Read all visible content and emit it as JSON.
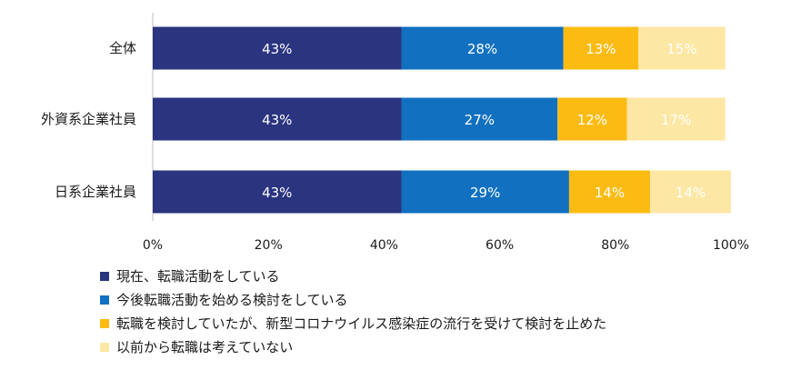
{
  "chart_data": {
    "type": "bar",
    "orientation": "horizontal",
    "stacked": true,
    "categories": [
      "全体",
      "外資系企業社員",
      "日系企業社員"
    ],
    "series": [
      {
        "name": "現在、転職活動をしている",
        "values": [
          43,
          43,
          43
        ],
        "labels": [
          "43%",
          "43%",
          "43%"
        ],
        "color": "#2a347f",
        "label_color": "#ffffff"
      },
      {
        "name": "今後転職活動を始める検討をしている",
        "values": [
          28,
          27,
          29
        ],
        "labels": [
          "28%",
          "27%",
          "29%"
        ],
        "color": "#1170c0",
        "label_color": "#ffffff"
      },
      {
        "name": "転職を検討していたが、新型コロナウイルス感染症の流行を受けて検討を止めた",
        "values": [
          13,
          12,
          14
        ],
        "labels": [
          "13%",
          "12%",
          "14%"
        ],
        "color": "#fbbb13",
        "label_color": "#ffffff"
      },
      {
        "name": "以前から転職は考えていない",
        "values": [
          15,
          17,
          14
        ],
        "labels": [
          "15%",
          "17%",
          "14%"
        ],
        "color": "#fde7a4",
        "label_color": "#ffffff"
      }
    ],
    "x_ticks": [
      "0%",
      "20%",
      "40%",
      "60%",
      "80%",
      "100%"
    ],
    "xlim": [
      0,
      100
    ],
    "grid": false,
    "legend_position": "bottom-left"
  }
}
